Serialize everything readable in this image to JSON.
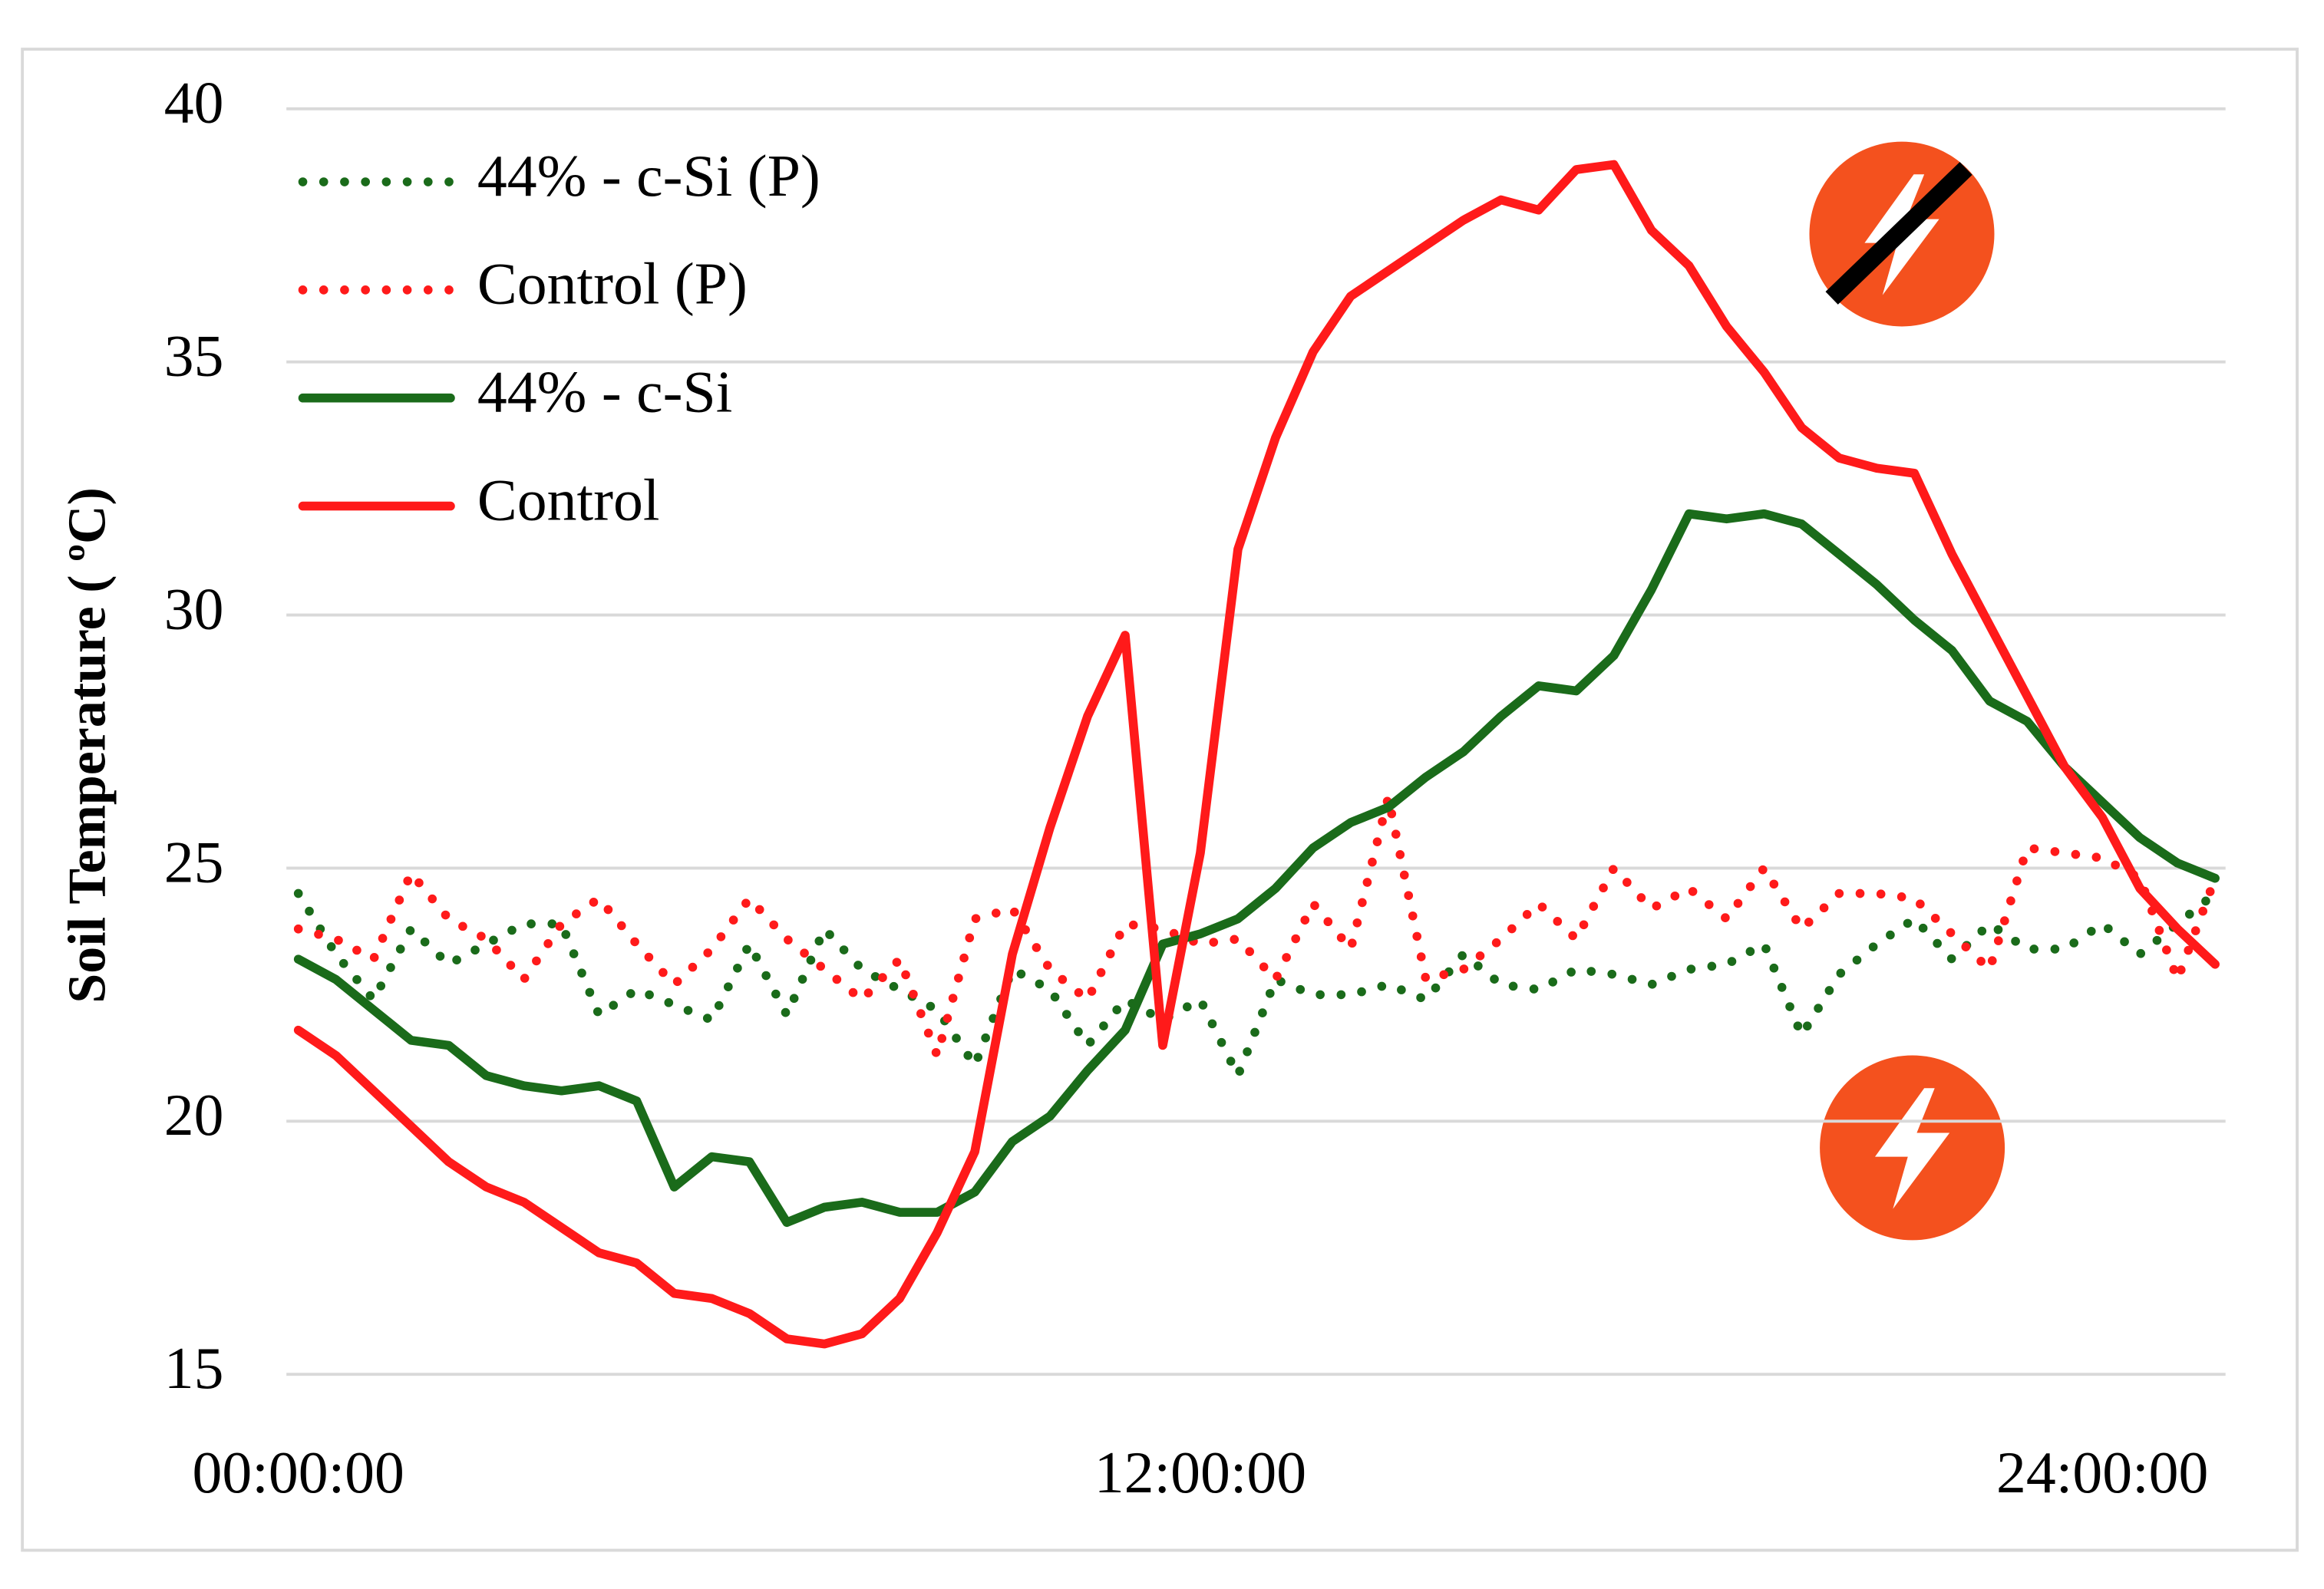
{
  "chart_data": {
    "type": "line",
    "ylabel": "Soil Temperature ( ºC)",
    "x": [
      0,
      0.5,
      1,
      1.5,
      2,
      2.5,
      3,
      3.5,
      4,
      4.5,
      5,
      5.5,
      6,
      6.5,
      7,
      7.5,
      8,
      8.5,
      9,
      9.5,
      10,
      10.5,
      11,
      11.5,
      12,
      12.5,
      13,
      13.5,
      14,
      14.5,
      15,
      15.5,
      16,
      16.5,
      17,
      17.5,
      18,
      18.5,
      19,
      19.5,
      20,
      20.5,
      21,
      21.5,
      22,
      22.5,
      23,
      23.5,
      24,
      24.5,
      25,
      25.5
    ],
    "xlim": [
      0,
      25.5
    ],
    "xticks": [
      {
        "value": 0,
        "label": "00:00:00"
      },
      {
        "value": 12,
        "label": "12:00:00"
      },
      {
        "value": 24,
        "label": "24:00:00"
      }
    ],
    "ylim": [
      15,
      40
    ],
    "yticks": [
      15,
      20,
      25,
      30,
      35,
      40
    ],
    "grid": true,
    "legend": "upper left",
    "series": [
      {
        "name": "44% - c-Si (P)",
        "color": "#1a6b1a",
        "style": "dotted",
        "values": [
          24.5,
          23.3,
          22.4,
          23.8,
          23.1,
          23.5,
          23.9,
          23.9,
          22.1,
          22.6,
          22.3,
          22.0,
          23.5,
          22.1,
          23.8,
          23.0,
          22.6,
          22.2,
          21.1,
          23.0,
          22.6,
          21.5,
          22.4,
          22.0,
          22.4,
          20.9,
          22.8,
          22.5,
          22.5,
          22.7,
          22.4,
          23.3,
          22.7,
          22.6,
          23.0,
          22.9,
          22.7,
          23.0,
          23.1,
          23.5,
          21.7,
          22.9,
          23.5,
          24.0,
          23.2,
          23.9,
          23.4,
          23.4,
          23.9,
          23.3,
          23.9,
          24.5
        ]
      },
      {
        "name": "Control (P)",
        "color": "#ff1a1a",
        "style": "dotted",
        "values": [
          23.8,
          23.6,
          23.2,
          24.9,
          24.0,
          23.6,
          22.8,
          23.9,
          24.4,
          23.5,
          22.7,
          23.4,
          24.4,
          23.6,
          23.0,
          22.4,
          23.2,
          21.3,
          24.0,
          24.2,
          23.0,
          22.4,
          23.9,
          23.8,
          23.5,
          23.6,
          22.8,
          24.3,
          23.4,
          26.4,
          22.8,
          23.0,
          23.6,
          24.3,
          23.6,
          25.0,
          24.2,
          24.6,
          24.0,
          25.0,
          23.8,
          24.5,
          24.5,
          24.4,
          23.7,
          23.0,
          25.4,
          25.3,
          25.2,
          24.8,
          22.8,
          24.8
        ]
      },
      {
        "name": "44% - c-Si",
        "color": "#1a6b1a",
        "style": "solid",
        "values": [
          23.2,
          22.8,
          22.2,
          21.6,
          21.5,
          20.9,
          20.7,
          20.6,
          20.7,
          20.4,
          18.7,
          19.3,
          19.2,
          18.0,
          18.3,
          18.4,
          18.2,
          18.2,
          18.6,
          19.6,
          20.1,
          21.0,
          21.8,
          23.5,
          23.7,
          24.0,
          24.6,
          25.4,
          25.9,
          26.2,
          26.8,
          27.3,
          28.0,
          28.6,
          28.5,
          29.2,
          30.5,
          32.0,
          31.9,
          32.0,
          31.8,
          31.2,
          30.6,
          29.9,
          29.3,
          28.3,
          27.9,
          27.0,
          26.3,
          25.6,
          25.1,
          24.8
        ]
      },
      {
        "name": "Control",
        "color": "#ff1a1a",
        "style": "solid",
        "values": [
          21.8,
          21.3,
          20.6,
          19.9,
          19.2,
          18.7,
          18.4,
          17.9,
          17.4,
          17.2,
          16.6,
          16.5,
          16.2,
          15.7,
          15.6,
          15.8,
          16.5,
          17.8,
          19.4,
          23.3,
          25.8,
          28.0,
          29.6,
          21.5,
          25.3,
          31.3,
          33.5,
          35.2,
          36.3,
          36.8,
          37.3,
          37.8,
          38.2,
          38.0,
          38.8,
          38.9,
          37.6,
          36.9,
          35.7,
          34.8,
          33.7,
          33.1,
          32.9,
          32.8,
          31.2,
          29.8,
          28.4,
          27.0,
          26.0,
          24.6,
          23.8,
          23.1
        ]
      }
    ]
  }
}
